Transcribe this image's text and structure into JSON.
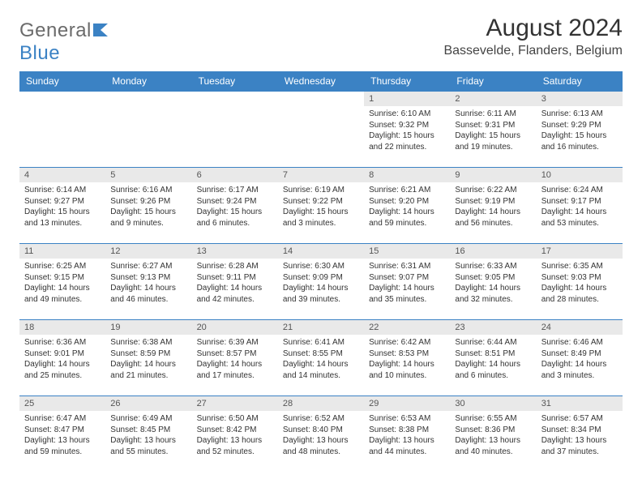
{
  "brand": {
    "text_gray": "General",
    "text_blue": "Blue"
  },
  "title": "August 2024",
  "location": "Bassevelde, Flanders, Belgium",
  "colors": {
    "header_bg": "#3b82c4",
    "header_text": "#ffffff",
    "daynum_bg": "#e9e9e9",
    "border": "#3b82c4",
    "body_text": "#333333",
    "logo_gray": "#6b6b6b"
  },
  "weekdays": [
    "Sunday",
    "Monday",
    "Tuesday",
    "Wednesday",
    "Thursday",
    "Friday",
    "Saturday"
  ],
  "weeks": [
    [
      null,
      null,
      null,
      null,
      {
        "n": "1",
        "sr": "6:10 AM",
        "ss": "9:32 PM",
        "dl": "15 hours and 22 minutes."
      },
      {
        "n": "2",
        "sr": "6:11 AM",
        "ss": "9:31 PM",
        "dl": "15 hours and 19 minutes."
      },
      {
        "n": "3",
        "sr": "6:13 AM",
        "ss": "9:29 PM",
        "dl": "15 hours and 16 minutes."
      }
    ],
    [
      {
        "n": "4",
        "sr": "6:14 AM",
        "ss": "9:27 PM",
        "dl": "15 hours and 13 minutes."
      },
      {
        "n": "5",
        "sr": "6:16 AM",
        "ss": "9:26 PM",
        "dl": "15 hours and 9 minutes."
      },
      {
        "n": "6",
        "sr": "6:17 AM",
        "ss": "9:24 PM",
        "dl": "15 hours and 6 minutes."
      },
      {
        "n": "7",
        "sr": "6:19 AM",
        "ss": "9:22 PM",
        "dl": "15 hours and 3 minutes."
      },
      {
        "n": "8",
        "sr": "6:21 AM",
        "ss": "9:20 PM",
        "dl": "14 hours and 59 minutes."
      },
      {
        "n": "9",
        "sr": "6:22 AM",
        "ss": "9:19 PM",
        "dl": "14 hours and 56 minutes."
      },
      {
        "n": "10",
        "sr": "6:24 AM",
        "ss": "9:17 PM",
        "dl": "14 hours and 53 minutes."
      }
    ],
    [
      {
        "n": "11",
        "sr": "6:25 AM",
        "ss": "9:15 PM",
        "dl": "14 hours and 49 minutes."
      },
      {
        "n": "12",
        "sr": "6:27 AM",
        "ss": "9:13 PM",
        "dl": "14 hours and 46 minutes."
      },
      {
        "n": "13",
        "sr": "6:28 AM",
        "ss": "9:11 PM",
        "dl": "14 hours and 42 minutes."
      },
      {
        "n": "14",
        "sr": "6:30 AM",
        "ss": "9:09 PM",
        "dl": "14 hours and 39 minutes."
      },
      {
        "n": "15",
        "sr": "6:31 AM",
        "ss": "9:07 PM",
        "dl": "14 hours and 35 minutes."
      },
      {
        "n": "16",
        "sr": "6:33 AM",
        "ss": "9:05 PM",
        "dl": "14 hours and 32 minutes."
      },
      {
        "n": "17",
        "sr": "6:35 AM",
        "ss": "9:03 PM",
        "dl": "14 hours and 28 minutes."
      }
    ],
    [
      {
        "n": "18",
        "sr": "6:36 AM",
        "ss": "9:01 PM",
        "dl": "14 hours and 25 minutes."
      },
      {
        "n": "19",
        "sr": "6:38 AM",
        "ss": "8:59 PM",
        "dl": "14 hours and 21 minutes."
      },
      {
        "n": "20",
        "sr": "6:39 AM",
        "ss": "8:57 PM",
        "dl": "14 hours and 17 minutes."
      },
      {
        "n": "21",
        "sr": "6:41 AM",
        "ss": "8:55 PM",
        "dl": "14 hours and 14 minutes."
      },
      {
        "n": "22",
        "sr": "6:42 AM",
        "ss": "8:53 PM",
        "dl": "14 hours and 10 minutes."
      },
      {
        "n": "23",
        "sr": "6:44 AM",
        "ss": "8:51 PM",
        "dl": "14 hours and 6 minutes."
      },
      {
        "n": "24",
        "sr": "6:46 AM",
        "ss": "8:49 PM",
        "dl": "14 hours and 3 minutes."
      }
    ],
    [
      {
        "n": "25",
        "sr": "6:47 AM",
        "ss": "8:47 PM",
        "dl": "13 hours and 59 minutes."
      },
      {
        "n": "26",
        "sr": "6:49 AM",
        "ss": "8:45 PM",
        "dl": "13 hours and 55 minutes."
      },
      {
        "n": "27",
        "sr": "6:50 AM",
        "ss": "8:42 PM",
        "dl": "13 hours and 52 minutes."
      },
      {
        "n": "28",
        "sr": "6:52 AM",
        "ss": "8:40 PM",
        "dl": "13 hours and 48 minutes."
      },
      {
        "n": "29",
        "sr": "6:53 AM",
        "ss": "8:38 PM",
        "dl": "13 hours and 44 minutes."
      },
      {
        "n": "30",
        "sr": "6:55 AM",
        "ss": "8:36 PM",
        "dl": "13 hours and 40 minutes."
      },
      {
        "n": "31",
        "sr": "6:57 AM",
        "ss": "8:34 PM",
        "dl": "13 hours and 37 minutes."
      }
    ]
  ],
  "labels": {
    "sunrise": "Sunrise:",
    "sunset": "Sunset:",
    "daylight": "Daylight:"
  }
}
